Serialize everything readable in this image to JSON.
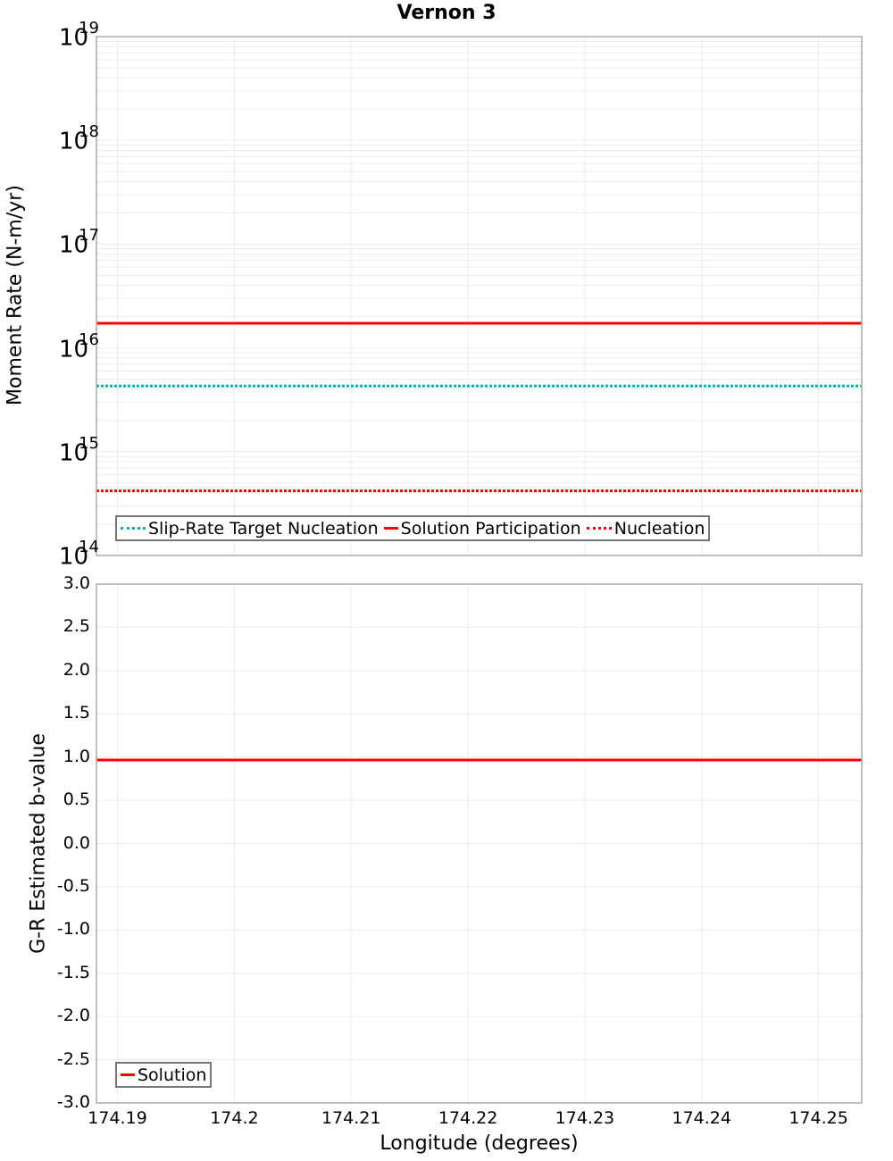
{
  "title": "Vernon 3",
  "top_panel": {
    "ylabel": "Moment Rate (N-m/yr)",
    "yticks": [
      {
        "base": "10",
        "exp": "19"
      },
      {
        "base": "10",
        "exp": "18"
      },
      {
        "base": "10",
        "exp": "17"
      },
      {
        "base": "10",
        "exp": "16"
      },
      {
        "base": "10",
        "exp": "15"
      },
      {
        "base": "10",
        "exp": "14"
      }
    ],
    "legend": [
      {
        "label": "Slip-Rate Target Nucleation",
        "color": "#00B4B4",
        "style": "dotted"
      },
      {
        "label": "Solution Participation",
        "color": "#FF0000",
        "style": "solid"
      },
      {
        "label": "Nucleation",
        "color": "#FF0000",
        "style": "dotted"
      }
    ]
  },
  "bottom_panel": {
    "ylabel": "G-R Estimated b-value",
    "yticks": [
      "3.0",
      "2.5",
      "2.0",
      "1.5",
      "1.0",
      "0.5",
      "0.0",
      "-0.5",
      "-1.0",
      "-1.5",
      "-2.0",
      "-2.5",
      "-3.0"
    ],
    "legend": [
      {
        "label": "Solution",
        "color": "#FF0000",
        "style": "solid"
      }
    ]
  },
  "xaxis": {
    "label": "Longitude (degrees)",
    "ticks": [
      "174.19",
      "174.2",
      "174.21",
      "174.22",
      "174.23",
      "174.24",
      "174.25"
    ]
  },
  "chart_data": [
    {
      "type": "line",
      "title": "Vernon 3",
      "xlabel": "Longitude (degrees)",
      "ylabel": "Moment Rate (N-m/yr)",
      "yscale": "log",
      "ylim": [
        100000000000000.0,
        1e+19
      ],
      "xlim": [
        174.1882,
        174.2537
      ],
      "grid": true,
      "legend_position": "lower-left",
      "x": [
        174.1882,
        174.2537
      ],
      "series": [
        {
          "name": "Slip-Rate Target Nucleation",
          "color": "#00B4B4",
          "style": "dotted",
          "values": [
            4300000000000000.0,
            4300000000000000.0
          ]
        },
        {
          "name": "Solution Participation",
          "color": "#FF0000",
          "style": "solid",
          "values": [
            1.73e+16,
            1.73e+16
          ]
        },
        {
          "name": "Nucleation",
          "color": "#FF0000",
          "style": "dotted",
          "values": [
            420000000000000.0,
            420000000000000.0
          ]
        }
      ]
    },
    {
      "type": "line",
      "xlabel": "Longitude (degrees)",
      "ylabel": "G-R Estimated b-value",
      "ylim": [
        -3.0,
        3.0
      ],
      "xlim": [
        174.1882,
        174.2537
      ],
      "xticks": [
        "174.19",
        "174.2",
        "174.21",
        "174.22",
        "174.23",
        "174.24",
        "174.25"
      ],
      "grid": true,
      "legend_position": "lower-left",
      "x": [
        174.1882,
        174.2537
      ],
      "series": [
        {
          "name": "Solution",
          "color": "#FF0000",
          "style": "solid",
          "values": [
            0.965,
            0.965
          ]
        }
      ]
    }
  ]
}
